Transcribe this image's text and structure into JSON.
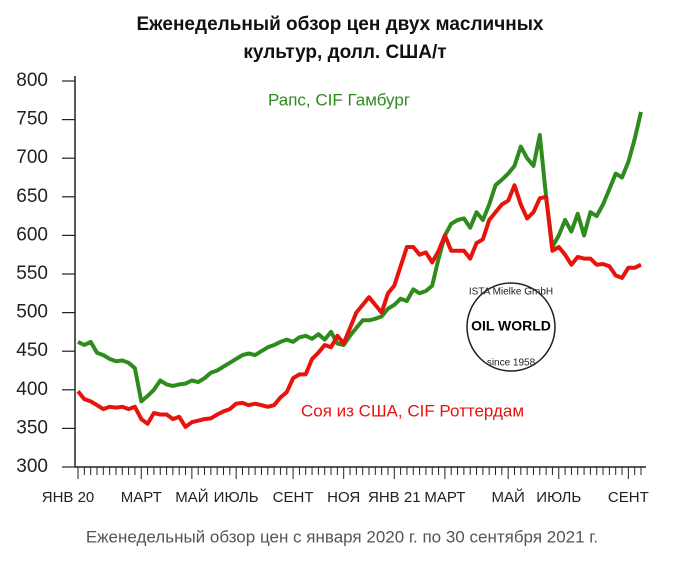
{
  "chart_data": {
    "type": "line",
    "title": "Еженедельный обзор цен двух масличных",
    "title_line2": "культур, долл. США/т",
    "subtitle": "Еженедельный обзор цен с января 2020 г. по 30 сентября 2021 г.",
    "logo": {
      "top": "ISTA Mielke GmbH",
      "center": "OIL WORLD",
      "bottom": "since 1958"
    },
    "categories": [
      "ЯНВ 20",
      null,
      null,
      null,
      null,
      null,
      null,
      null,
      null,
      null,
      "МАРТ",
      null,
      null,
      null,
      null,
      null,
      null,
      null,
      "МАЙ",
      null,
      null,
      null,
      null,
      null,
      null,
      "ИЮЛЬ",
      null,
      null,
      null,
      null,
      null,
      null,
      null,
      null,
      "СЕНТ",
      null,
      null,
      null,
      null,
      null,
      null,
      null,
      "НОЯ",
      null,
      null,
      null,
      null,
      null,
      null,
      null,
      "ЯНВ 21",
      null,
      null,
      null,
      null,
      null,
      null,
      null,
      "МАРТ",
      null,
      null,
      null,
      null,
      null,
      null,
      null,
      null,
      null,
      "МАЙ",
      null,
      null,
      null,
      null,
      null,
      null,
      null,
      "ИЮЛЬ",
      null,
      null,
      null,
      null,
      null,
      null,
      null,
      null,
      null,
      null,
      "СЕНТ",
      null,
      null
    ],
    "series": [
      {
        "name": "Рапс, CIF Гамбург",
        "color": "#2e8b1e",
        "values": [
          462,
          458,
          462,
          448,
          445,
          440,
          437,
          438,
          435,
          428,
          385,
          392,
          400,
          412,
          407,
          405,
          407,
          408,
          412,
          410,
          415,
          422,
          425,
          430,
          435,
          440,
          445,
          447,
          445,
          450,
          455,
          458,
          462,
          465,
          462,
          468,
          470,
          466,
          472,
          465,
          475,
          460,
          458,
          470,
          480,
          490,
          490,
          492,
          495,
          505,
          510,
          518,
          515,
          530,
          525,
          528,
          535,
          570,
          600,
          615,
          620,
          622,
          610,
          630,
          620,
          640,
          665,
          672,
          680,
          690,
          715,
          700,
          690,
          730,
          650,
          585,
          600,
          620,
          605,
          628,
          600,
          630,
          625,
          640,
          660,
          680,
          675,
          695,
          725,
          760
        ]
      },
      {
        "name": "Соя из США, CIF Роттердам",
        "color": "#e8130c",
        "values": [
          398,
          388,
          385,
          380,
          375,
          378,
          377,
          378,
          375,
          378,
          362,
          356,
          370,
          368,
          368,
          362,
          365,
          352,
          358,
          360,
          362,
          363,
          368,
          372,
          375,
          382,
          383,
          380,
          382,
          380,
          378,
          380,
          390,
          397,
          415,
          420,
          420,
          440,
          448,
          458,
          455,
          470,
          460,
          480,
          500,
          510,
          520,
          510,
          500,
          525,
          535,
          560,
          585,
          585,
          575,
          578,
          565,
          580,
          600,
          580,
          580,
          580,
          570,
          590,
          595,
          620,
          630,
          640,
          645,
          665,
          640,
          622,
          630,
          648,
          650,
          580,
          585,
          575,
          562,
          572,
          570,
          570,
          562,
          563,
          560,
          548,
          545,
          558,
          558,
          562
        ]
      }
    ],
    "ylim": [
      300,
      800
    ],
    "yticks": [
      300,
      350,
      400,
      450,
      500,
      550,
      600,
      650,
      700,
      750,
      800
    ],
    "grid": false
  }
}
